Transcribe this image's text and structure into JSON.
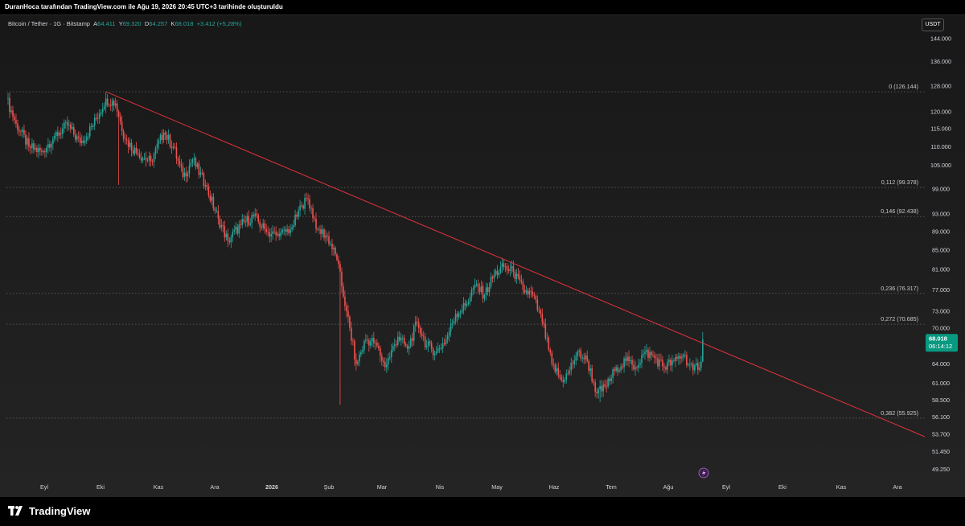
{
  "header": {
    "text": "DuranHoca tarafından TradingView.com ile Ağu 19, 2026 20:45 UTC+3 tarihinde oluşturuldu"
  },
  "legend": {
    "symbol": "Bitcoin / Tether · 1G · Bitstamp",
    "open_label": "A",
    "open": "64.411",
    "high_label": "Y",
    "high": "69.320",
    "low_label": "D",
    "low": "64.257",
    "close_label": "K",
    "close": "68.018",
    "change": "+3.412 (+5,28%)"
  },
  "currency": "USDT",
  "footer": {
    "logo": "TradingView"
  },
  "colors": {
    "up": "#26a69a",
    "down": "#ef5350",
    "trendline": "#e0323a",
    "price_tag": "#089981"
  },
  "chart_data": {
    "type": "candlestick",
    "y_scale": "log",
    "ylim": [
      48500,
      152000
    ],
    "y_ticks": [
      "144.000",
      "136.000",
      "128.000",
      "120.000",
      "115.000",
      "110.000",
      "105.000",
      "99.000",
      "93.000",
      "89.000",
      "85.000",
      "81.000",
      "77.000",
      "73.000",
      "70.000",
      "64.000",
      "61.000",
      "58.500",
      "56.100",
      "53.700",
      "51.450",
      "49.250"
    ],
    "x_ticks": [
      "Eyl",
      "Eki",
      "Kas",
      "Ara",
      "2026",
      "Şub",
      "Mar",
      "Nis",
      "May",
      "Haz",
      "Tem",
      "Ağu",
      "Eyl",
      "Eki",
      "Kas",
      "Ara"
    ],
    "fib_levels": [
      {
        "label": "0 (126.144)",
        "value": 126144
      },
      {
        "label": "0,112 (99.378)",
        "value": 99378
      },
      {
        "label": "0,146 (92.438)",
        "value": 92438
      },
      {
        "label": "0,236 (76.317)",
        "value": 76317
      },
      {
        "label": "0,272 (70.685)",
        "value": 70685
      },
      {
        "label": "0,382 (55.925)",
        "value": 55925
      }
    ],
    "trendline": {
      "from": {
        "x": "Eki 6",
        "y": 126144
      },
      "to": {
        "x": "Ara 31",
        "y": 53400
      }
    },
    "last_price": {
      "value": "68.018",
      "countdown": "06:14:12"
    },
    "close_anchors": [
      {
        "t": 0,
        "v": 124000
      },
      {
        "t": 6,
        "v": 116500
      },
      {
        "t": 14,
        "v": 110000
      },
      {
        "t": 22,
        "v": 108500
      },
      {
        "t": 30,
        "v": 113000
      },
      {
        "t": 38,
        "v": 116000
      },
      {
        "t": 46,
        "v": 111000
      },
      {
        "t": 54,
        "v": 116000
      },
      {
        "t": 62,
        "v": 124000
      },
      {
        "t": 68,
        "v": 122500
      },
      {
        "t": 74,
        "v": 112000
      },
      {
        "t": 82,
        "v": 108000
      },
      {
        "t": 90,
        "v": 106000
      },
      {
        "t": 98,
        "v": 114000
      },
      {
        "t": 104,
        "v": 110000
      },
      {
        "t": 110,
        "v": 102000
      },
      {
        "t": 116,
        "v": 106500
      },
      {
        "t": 124,
        "v": 100000
      },
      {
        "t": 132,
        "v": 92000
      },
      {
        "t": 138,
        "v": 87000
      },
      {
        "t": 146,
        "v": 90500
      },
      {
        "t": 154,
        "v": 92500
      },
      {
        "t": 162,
        "v": 89000
      },
      {
        "t": 170,
        "v": 88000
      },
      {
        "t": 178,
        "v": 90000
      },
      {
        "t": 184,
        "v": 95000
      },
      {
        "t": 188,
        "v": 96500
      },
      {
        "t": 194,
        "v": 89500
      },
      {
        "t": 200,
        "v": 88000
      },
      {
        "t": 206,
        "v": 83000
      },
      {
        "t": 212,
        "v": 73000
      },
      {
        "t": 218,
        "v": 64000
      },
      {
        "t": 224,
        "v": 68000
      },
      {
        "t": 230,
        "v": 67500
      },
      {
        "t": 236,
        "v": 63500
      },
      {
        "t": 244,
        "v": 68500
      },
      {
        "t": 250,
        "v": 66500
      },
      {
        "t": 256,
        "v": 71000
      },
      {
        "t": 262,
        "v": 67000
      },
      {
        "t": 268,
        "v": 66000
      },
      {
        "t": 274,
        "v": 68000
      },
      {
        "t": 280,
        "v": 72500
      },
      {
        "t": 286,
        "v": 74000
      },
      {
        "t": 292,
        "v": 78000
      },
      {
        "t": 298,
        "v": 76000
      },
      {
        "t": 304,
        "v": 80000
      },
      {
        "t": 310,
        "v": 81500
      },
      {
        "t": 316,
        "v": 80500
      },
      {
        "t": 322,
        "v": 77000
      },
      {
        "t": 328,
        "v": 76000
      },
      {
        "t": 334,
        "v": 71000
      },
      {
        "t": 340,
        "v": 64000
      },
      {
        "t": 346,
        "v": 61500
      },
      {
        "t": 350,
        "v": 62500
      },
      {
        "t": 356,
        "v": 66000
      },
      {
        "t": 362,
        "v": 64500
      },
      {
        "t": 368,
        "v": 59500
      },
      {
        "t": 374,
        "v": 60500
      },
      {
        "t": 380,
        "v": 63500
      },
      {
        "t": 386,
        "v": 64500
      },
      {
        "t": 392,
        "v": 63500
      },
      {
        "t": 398,
        "v": 66000
      },
      {
        "t": 404,
        "v": 65000
      },
      {
        "t": 410,
        "v": 63500
      },
      {
        "t": 416,
        "v": 64500
      },
      {
        "t": 422,
        "v": 65500
      },
      {
        "t": 428,
        "v": 63000
      },
      {
        "t": 433,
        "v": 64411
      },
      {
        "t": 434,
        "v": 68018
      }
    ]
  }
}
